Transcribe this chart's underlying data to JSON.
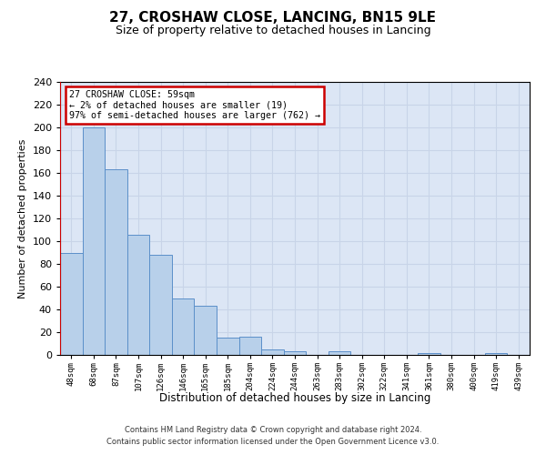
{
  "title": "27, CROSHAW CLOSE, LANCING, BN15 9LE",
  "subtitle": "Size of property relative to detached houses in Lancing",
  "xlabel": "Distribution of detached houses by size in Lancing",
  "ylabel": "Number of detached properties",
  "bin_labels": [
    "48sqm",
    "68sqm",
    "87sqm",
    "107sqm",
    "126sqm",
    "146sqm",
    "165sqm",
    "185sqm",
    "204sqm",
    "224sqm",
    "244sqm",
    "263sqm",
    "283sqm",
    "302sqm",
    "322sqm",
    "341sqm",
    "361sqm",
    "380sqm",
    "400sqm",
    "419sqm",
    "439sqm"
  ],
  "bar_heights": [
    90,
    200,
    163,
    106,
    88,
    50,
    43,
    15,
    16,
    5,
    3,
    0,
    3,
    0,
    0,
    0,
    2,
    0,
    0,
    2,
    0
  ],
  "bar_color": "#b8d0ea",
  "bar_edge_color": "#5b8fc9",
  "ylim": [
    0,
    240
  ],
  "yticks": [
    0,
    20,
    40,
    60,
    80,
    100,
    120,
    140,
    160,
    180,
    200,
    220,
    240
  ],
  "grid_color": "#c8d4e8",
  "background_color": "#dce6f5",
  "annotation_title": "27 CROSHAW CLOSE: 59sqm",
  "annotation_line1": "← 2% of detached houses are smaller (19)",
  "annotation_line2": "97% of semi-detached houses are larger (762) →",
  "annotation_box_facecolor": "#ffffff",
  "annotation_box_edgecolor": "#cc0000",
  "red_line_color": "#cc0000",
  "footer1": "Contains HM Land Registry data © Crown copyright and database right 2024.",
  "footer2": "Contains public sector information licensed under the Open Government Licence v3.0."
}
